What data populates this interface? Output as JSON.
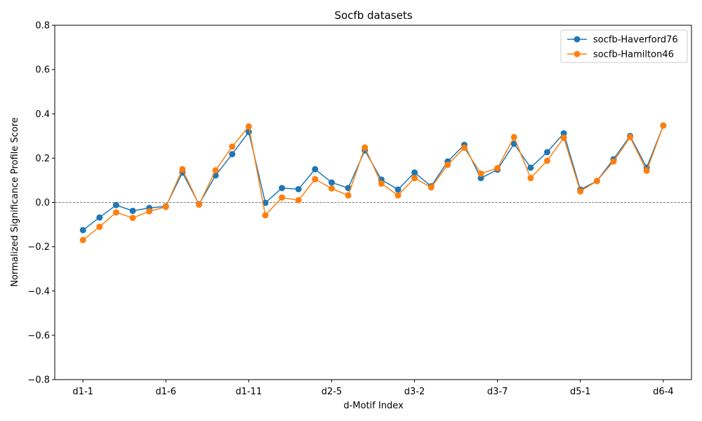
{
  "chart_data": {
    "type": "line",
    "title": "Socfb datasets",
    "xlabel": "d-Motif Index",
    "ylabel": "Normalized Significance Profile Score",
    "ylim": [
      -0.8,
      0.8
    ],
    "yticks": [
      -0.8,
      -0.6,
      -0.4,
      -0.2,
      0.0,
      0.2,
      0.4,
      0.6,
      0.8
    ],
    "ytick_labels": [
      "−0.8",
      "−0.6",
      "−0.4",
      "−0.2",
      "0.0",
      "0.2",
      "0.4",
      "0.6",
      "0.8"
    ],
    "xticks": [
      1,
      6,
      11,
      16,
      21,
      26,
      31,
      36
    ],
    "xtick_labels": [
      "d1-1",
      "d1-6",
      "d1-11",
      "d2-5",
      "d3-2",
      "d3-7",
      "d5-1",
      "d6-4"
    ],
    "x": [
      1,
      2,
      3,
      4,
      5,
      6,
      7,
      8,
      9,
      10,
      11,
      12,
      13,
      14,
      15,
      16,
      17,
      18,
      19,
      20,
      21,
      22,
      23,
      24,
      25,
      26,
      27,
      28,
      29,
      30,
      31,
      32,
      33,
      34,
      35,
      36
    ],
    "reference_line": {
      "y": 0.0,
      "style": "dashed",
      "color": "#808080"
    },
    "grid": false,
    "legend": "top-right",
    "series": [
      {
        "name": "socfb-Haverford76",
        "color": "#1f77b4",
        "values": [
          -0.125,
          -0.068,
          -0.012,
          -0.038,
          -0.025,
          -0.018,
          0.135,
          -0.008,
          0.122,
          0.218,
          0.318,
          -0.002,
          0.065,
          0.06,
          0.15,
          0.09,
          0.065,
          0.235,
          0.103,
          0.058,
          0.135,
          0.073,
          0.185,
          0.26,
          0.11,
          0.148,
          0.265,
          0.157,
          0.227,
          0.312,
          0.058,
          0.097,
          0.195,
          0.3,
          0.157,
          0.347
        ]
      },
      {
        "name": "socfb-Hamilton46",
        "color": "#ff7f0e",
        "values": [
          -0.17,
          -0.11,
          -0.045,
          -0.07,
          -0.04,
          -0.02,
          0.15,
          -0.01,
          0.145,
          0.252,
          0.343,
          -0.058,
          0.022,
          0.01,
          0.105,
          0.063,
          0.032,
          0.248,
          0.085,
          0.032,
          0.11,
          0.068,
          0.17,
          0.247,
          0.13,
          0.155,
          0.295,
          0.11,
          0.188,
          0.292,
          0.05,
          0.097,
          0.185,
          0.295,
          0.143,
          0.347
        ]
      }
    ]
  }
}
